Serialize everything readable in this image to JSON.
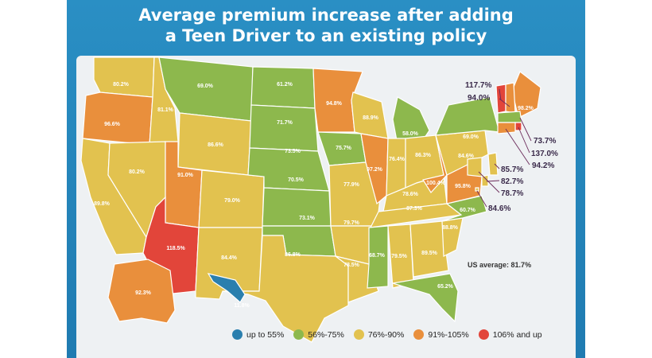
{
  "title_line1": "Average premium increase after adding",
  "title_line2": "a Teen Driver to an existing policy",
  "us_average_label": "US average:",
  "us_average_value": "81.7%",
  "colors": {
    "tier1": "#2a7fae",
    "tier2": "#8db84d",
    "tier3": "#e2c24f",
    "tier4": "#e98f3c",
    "tier5": "#e2453a"
  },
  "legend": [
    {
      "label": "up to 55%",
      "tier": "tier1"
    },
    {
      "label": "56%-75%",
      "tier": "tier2"
    },
    {
      "label": "76%-90%",
      "tier": "tier3"
    },
    {
      "label": "91%-105%",
      "tier": "tier4"
    },
    {
      "label": "106% and up",
      "tier": "tier5"
    }
  ],
  "states": [
    {
      "id": "wa",
      "value": "80.2%",
      "tier": "tier3"
    },
    {
      "id": "or",
      "value": "96.6%",
      "tier": "tier4"
    },
    {
      "id": "ca",
      "value": "89.8%",
      "tier": "tier3"
    },
    {
      "id": "id",
      "value": "81.1%",
      "tier": "tier3"
    },
    {
      "id": "nv",
      "value": "80.2%",
      "tier": "tier3"
    },
    {
      "id": "mt",
      "value": "69.0%",
      "tier": "tier2"
    },
    {
      "id": "wy",
      "value": "86.6%",
      "tier": "tier3"
    },
    {
      "id": "ut",
      "value": "91.0%",
      "tier": "tier4"
    },
    {
      "id": "az",
      "value": "118.5%",
      "tier": "tier5"
    },
    {
      "id": "co",
      "value": "79.0%",
      "tier": "tier3"
    },
    {
      "id": "nm",
      "value": "84.4%",
      "tier": "tier3"
    },
    {
      "id": "nd",
      "value": "61.2%",
      "tier": "tier2"
    },
    {
      "id": "sd",
      "value": "71.7%",
      "tier": "tier2"
    },
    {
      "id": "ne",
      "value": "73.5%",
      "tier": "tier2"
    },
    {
      "id": "ks",
      "value": "70.5%",
      "tier": "tier2"
    },
    {
      "id": "ok",
      "value": "73.1%",
      "tier": "tier2"
    },
    {
      "id": "tx",
      "value": "86.8%",
      "tier": "tier3"
    },
    {
      "id": "mn",
      "value": "94.8%",
      "tier": "tier4"
    },
    {
      "id": "ia",
      "value": "75.7%",
      "tier": "tier2"
    },
    {
      "id": "mo",
      "value": "77.9%",
      "tier": "tier3"
    },
    {
      "id": "ar",
      "value": "79.7%",
      "tier": "tier3"
    },
    {
      "id": "la",
      "value": "78.5%",
      "tier": "tier3"
    },
    {
      "id": "wi",
      "value": "88.9%",
      "tier": "tier3"
    },
    {
      "id": "il",
      "value": "97.2%",
      "tier": "tier4"
    },
    {
      "id": "mi",
      "value": "58.0%",
      "tier": "tier2"
    },
    {
      "id": "in",
      "value": "76.4%",
      "tier": "tier3"
    },
    {
      "id": "oh",
      "value": "86.3%",
      "tier": "tier3"
    },
    {
      "id": "ky",
      "value": "78.6%",
      "tier": "tier3"
    },
    {
      "id": "tn",
      "value": "87.3%",
      "tier": "tier3"
    },
    {
      "id": "ms",
      "value": "68.7%",
      "tier": "tier2"
    },
    {
      "id": "al",
      "value": "79.5%",
      "tier": "tier3"
    },
    {
      "id": "ga",
      "value": "89.5%",
      "tier": "tier3"
    },
    {
      "id": "fl",
      "value": "65.2%",
      "tier": "tier2"
    },
    {
      "id": "sc",
      "value": "88.8%",
      "tier": "tier3"
    },
    {
      "id": "nc",
      "value": "60.7%",
      "tier": "tier2"
    },
    {
      "id": "va",
      "value": "95.8%",
      "tier": "tier4"
    },
    {
      "id": "wv",
      "value": "100.4%",
      "tier": "tier4"
    },
    {
      "id": "pa",
      "value": "84.6%",
      "tier": "tier3"
    },
    {
      "id": "ny",
      "value": "69.0%",
      "tier": "tier2"
    },
    {
      "id": "me",
      "value": "98.2%",
      "tier": "tier4"
    },
    {
      "id": "ak",
      "value": "92.3%",
      "tier": "tier4"
    },
    {
      "id": "hi",
      "value": "11.8%",
      "tier": "tier1"
    }
  ],
  "northeast": [
    {
      "id": "vt",
      "value": "117.7%",
      "tier": "tier5"
    },
    {
      "id": "nh",
      "value": "94.0%",
      "tier": "tier4"
    },
    {
      "id": "ma",
      "value": "73.7%",
      "tier": "tier2"
    },
    {
      "id": "ri",
      "value": "137.0%",
      "tier": "tier5"
    },
    {
      "id": "ct",
      "value": "94.2%",
      "tier": "tier4"
    },
    {
      "id": "nj",
      "value": "85.7%",
      "tier": "tier3"
    },
    {
      "id": "de",
      "value": "82.7%",
      "tier": "tier3"
    },
    {
      "id": "md",
      "value": "78.7%",
      "tier": "tier3"
    },
    {
      "id": "dc",
      "value": "84.6%",
      "tier": "tier3"
    }
  ]
}
